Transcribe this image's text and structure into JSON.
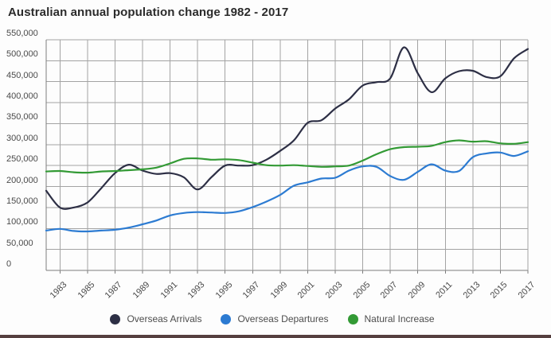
{
  "chart_data": {
    "type": "line",
    "title": "Australian annual population change 1982 - 2017",
    "xlabel": "",
    "ylabel": "",
    "x": [
      1982,
      1983,
      1984,
      1985,
      1986,
      1987,
      1988,
      1989,
      1990,
      1991,
      1992,
      1993,
      1994,
      1995,
      1996,
      1997,
      1998,
      1999,
      2000,
      2001,
      2002,
      2003,
      2004,
      2005,
      2006,
      2007,
      2008,
      2009,
      2010,
      2011,
      2012,
      2013,
      2014,
      2015,
      2016,
      2017
    ],
    "series": [
      {
        "name": "Overseas Arrivals",
        "color": "#2d2f45",
        "values": [
          190000,
          150000,
          150000,
          162000,
          196000,
          232000,
          252000,
          238000,
          230000,
          232000,
          222000,
          193000,
          222000,
          250000,
          250000,
          251000,
          264000,
          285000,
          310000,
          352000,
          358000,
          386000,
          408000,
          441000,
          449000,
          458000,
          532000,
          470000,
          425000,
          458000,
          475000,
          476000,
          461000,
          463000,
          506000,
          528000
        ]
      },
      {
        "name": "Overseas Departures",
        "color": "#2c7bd2",
        "values": [
          95000,
          99000,
          94000,
          93000,
          95000,
          97000,
          102000,
          110000,
          119000,
          131000,
          137000,
          139000,
          138000,
          137000,
          141000,
          151000,
          164000,
          180000,
          202000,
          210000,
          219000,
          221000,
          238000,
          248000,
          247000,
          225000,
          216000,
          235000,
          253000,
          238000,
          237000,
          270000,
          279000,
          281000,
          273000,
          284000
        ]
      },
      {
        "name": "Natural Increase",
        "color": "#339a35",
        "values": [
          236000,
          237000,
          234000,
          233000,
          236000,
          237000,
          239000,
          241000,
          245000,
          255000,
          266000,
          267000,
          264000,
          265000,
          263000,
          257000,
          251000,
          250000,
          251000,
          249000,
          247000,
          248000,
          250000,
          262000,
          277000,
          289000,
          294000,
          295000,
          297000,
          306000,
          310000,
          307000,
          308000,
          303000,
          302000,
          306000
        ]
      }
    ],
    "ylim": [
      0,
      550000
    ],
    "y_tick_step": 50000,
    "y_tick_labels": [
      "0",
      "50,000",
      "100,000",
      "150,000",
      "200,000",
      "250,000",
      "300,000",
      "350,000",
      "400,000",
      "450,000",
      "500,000",
      "550,000"
    ],
    "x_tick_years": [
      1983,
      1985,
      1987,
      1989,
      1991,
      1993,
      1995,
      1997,
      1999,
      2001,
      2003,
      2005,
      2007,
      2009,
      2011,
      2013,
      2015,
      2017
    ],
    "grid": true,
    "legend_position": "bottom",
    "colors": {
      "gridline": "#a3a3a3",
      "axis": "#7d7d7d",
      "title_text": "#2b2b2b",
      "tick_text": "#4a4a4a",
      "legend_text": "#4d4d4d",
      "background": "#fdfdfd",
      "bottom_edge": "#553f3f"
    }
  }
}
